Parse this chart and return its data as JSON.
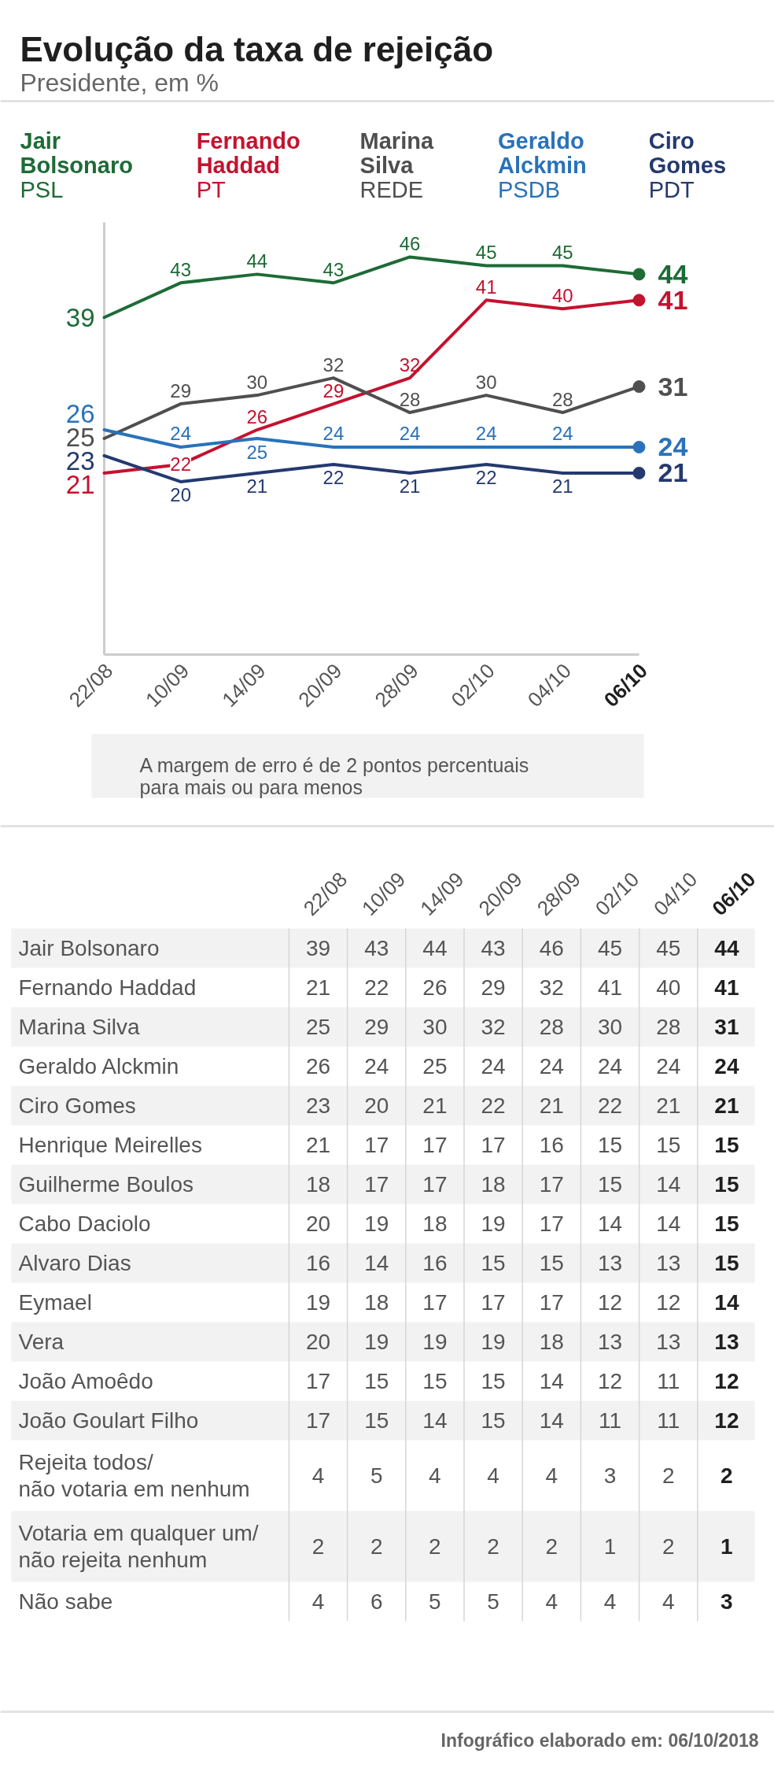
{
  "chart_data": [
    {
      "type": "line",
      "title": "Evolução da taxa de rejeição",
      "subtitle": "Presidente, em %",
      "categories": [
        "22/08",
        "10/09",
        "14/09",
        "20/09",
        "28/09",
        "02/10",
        "04/10",
        "06/10"
      ],
      "ylim": [
        0,
        50
      ],
      "tick_labels": "x",
      "legend": "top",
      "data_labels": true,
      "series": [
        {
          "name": "Jair\nBolsonaro\nPSL",
          "color": "#1e6b37",
          "values": [
            39,
            43,
            44,
            43,
            46,
            45,
            45,
            44
          ]
        },
        {
          "name": "Fernando\nHaddad\nPT",
          "color": "#c4122f",
          "values": [
            21,
            22,
            26,
            29,
            32,
            41,
            40,
            41
          ]
        },
        {
          "name": "Marina\nSilva\nREDE",
          "color": "#4f4f4f",
          "values": [
            25,
            29,
            30,
            32,
            28,
            30,
            28,
            31
          ]
        },
        {
          "name": "Geraldo\nAlckmin\nPSDB",
          "color": "#2a72b9",
          "values": [
            26,
            24,
            25,
            24,
            24,
            24,
            24,
            24
          ]
        },
        {
          "name": "Ciro\nGomes\nPDT",
          "color": "#24396f",
          "values": [
            23,
            20,
            21,
            22,
            21,
            22,
            21,
            21
          ]
        }
      ],
      "annotations": [
        "A margem de erro é de 2 pontos percentuais\npara mais ou para menos"
      ]
    },
    {
      "type": "heatmap",
      "categories": [
        "22/08",
        "10/09",
        "14/09",
        "20/09",
        "28/09",
        "02/10",
        "04/10",
        "06/10"
      ],
      "y_categories": [
        "Jair Bolsonaro",
        "Fernando Haddad",
        "Marina Silva",
        "Geraldo Alckmin",
        "Ciro Gomes",
        "Henrique Meirelles",
        "Guilherme Boulos",
        "Cabo Daciolo",
        "Alvaro Dias",
        "Eymael",
        "Vera",
        "João Amoêdo",
        "João Goulart Filho",
        "Rejeita todos/\nnão votaria em nenhum",
        "Votaria em qualquer um/\nnão rejeita nenhum",
        "Não sabe"
      ],
      "cells": [
        [
          39,
          43,
          44,
          43,
          46,
          45,
          45,
          44
        ],
        [
          21,
          22,
          26,
          29,
          32,
          41,
          40,
          41
        ],
        [
          25,
          29,
          30,
          32,
          28,
          30,
          28,
          31
        ],
        [
          26,
          24,
          25,
          24,
          24,
          24,
          24,
          24
        ],
        [
          23,
          20,
          21,
          22,
          21,
          22,
          21,
          21
        ],
        [
          21,
          17,
          17,
          17,
          16,
          15,
          15,
          15
        ],
        [
          18,
          17,
          17,
          18,
          17,
          15,
          14,
          15
        ],
        [
          20,
          19,
          18,
          19,
          17,
          14,
          14,
          15
        ],
        [
          16,
          14,
          16,
          15,
          15,
          13,
          13,
          15
        ],
        [
          19,
          18,
          17,
          17,
          17,
          12,
          12,
          14
        ],
        [
          20,
          19,
          19,
          19,
          18,
          13,
          13,
          13
        ],
        [
          17,
          15,
          15,
          15,
          14,
          12,
          11,
          12
        ],
        [
          17,
          15,
          14,
          15,
          14,
          11,
          11,
          12
        ],
        [
          4,
          5,
          4,
          4,
          4,
          3,
          2,
          2
        ],
        [
          2,
          2,
          2,
          2,
          2,
          1,
          2,
          1
        ],
        [
          4,
          6,
          5,
          5,
          4,
          4,
          4,
          3
        ]
      ],
      "data_labels": true,
      "grid": "x",
      "annotations": [
        "Infográfico elaborado em: 06/10/2018"
      ]
    }
  ]
}
